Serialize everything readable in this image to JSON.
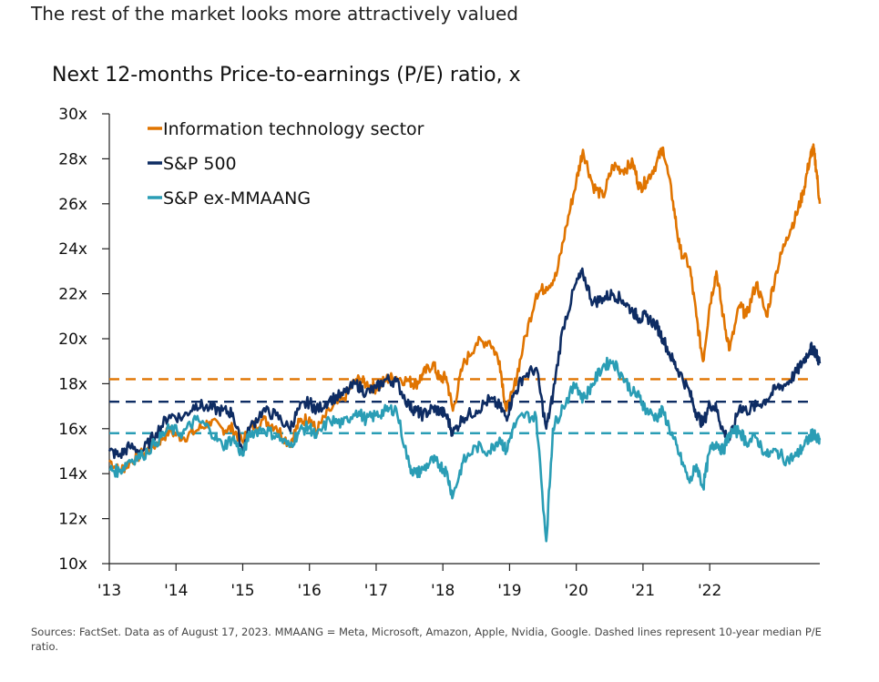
{
  "headline": "The rest of the market looks more attractively valued",
  "footnote": "Sources: FactSet. Data as of August 17, 2023. MMAANG = Meta, Microsoft, Amazon, Apple, Nvidia, Google. Dashed lines represent 10-year median P/E ratio.",
  "colors": {
    "it": "#E07400",
    "sp500": "#0E2C63",
    "exmmaang": "#2A9DB5"
  },
  "chart_data": {
    "type": "line",
    "title": "Next 12-months Price-to-earnings (P/E) ratio, x",
    "x_ticks": [
      "'13",
      "'14",
      "'15",
      "'16",
      "'17",
      "'18",
      "'19",
      "'20",
      "'21",
      "'22"
    ],
    "xlim": [
      2013.0,
      2023.65
    ],
    "ylim": [
      10,
      30
    ],
    "y_ticks": [
      "10x",
      "12x",
      "14x",
      "16x",
      "18x",
      "20x",
      "22x",
      "24x",
      "26x",
      "28x",
      "30x"
    ],
    "y_tick_values": [
      10,
      12,
      14,
      16,
      18,
      20,
      22,
      24,
      26,
      28,
      30
    ],
    "legend_position": "top-left",
    "series": [
      {
        "name": "Information technology sector",
        "key": "it",
        "median": 18.2,
        "points": [
          [
            2013.0,
            14.6
          ],
          [
            2013.15,
            14.1
          ],
          [
            2013.3,
            14.5
          ],
          [
            2013.5,
            14.9
          ],
          [
            2013.7,
            15.3
          ],
          [
            2013.9,
            15.9
          ],
          [
            2014.1,
            15.6
          ],
          [
            2014.3,
            15.9
          ],
          [
            2014.5,
            16.3
          ],
          [
            2014.7,
            16.0
          ],
          [
            2014.85,
            16.0
          ],
          [
            2015.0,
            15.4
          ],
          [
            2015.1,
            16.0
          ],
          [
            2015.3,
            16.4
          ],
          [
            2015.5,
            16.1
          ],
          [
            2015.7,
            15.3
          ],
          [
            2015.85,
            16.3
          ],
          [
            2016.0,
            16.5
          ],
          [
            2016.1,
            15.9
          ],
          [
            2016.3,
            16.8
          ],
          [
            2016.5,
            17.3
          ],
          [
            2016.7,
            18.2
          ],
          [
            2016.85,
            18.0
          ],
          [
            2017.0,
            17.8
          ],
          [
            2017.15,
            18.2
          ],
          [
            2017.3,
            18.3
          ],
          [
            2017.5,
            18.1
          ],
          [
            2017.6,
            18.0
          ],
          [
            2017.7,
            18.4
          ],
          [
            2017.85,
            18.9
          ],
          [
            2017.95,
            18.2
          ],
          [
            2018.05,
            18.3
          ],
          [
            2018.15,
            16.8
          ],
          [
            2018.3,
            18.8
          ],
          [
            2018.5,
            19.8
          ],
          [
            2018.7,
            19.9
          ],
          [
            2018.85,
            19.0
          ],
          [
            2018.95,
            16.8
          ],
          [
            2019.05,
            17.6
          ],
          [
            2019.2,
            19.6
          ],
          [
            2019.4,
            22.0
          ],
          [
            2019.55,
            22.3
          ],
          [
            2019.7,
            22.8
          ],
          [
            2019.85,
            25.0
          ],
          [
            2020.0,
            27.0
          ],
          [
            2020.1,
            28.4
          ],
          [
            2020.25,
            26.8
          ],
          [
            2020.4,
            26.3
          ],
          [
            2020.55,
            27.7
          ],
          [
            2020.7,
            27.5
          ],
          [
            2020.85,
            27.8
          ],
          [
            2020.95,
            26.7
          ],
          [
            2021.05,
            27.0
          ],
          [
            2021.2,
            27.8
          ],
          [
            2021.3,
            28.5
          ],
          [
            2021.45,
            26.1
          ],
          [
            2021.55,
            24.0
          ],
          [
            2021.7,
            23.2
          ],
          [
            2021.8,
            21.0
          ],
          [
            2021.9,
            19.0
          ],
          [
            2022.0,
            21.5
          ],
          [
            2022.1,
            23.0
          ],
          [
            2022.2,
            21.0
          ],
          [
            2022.3,
            19.5
          ],
          [
            2022.45,
            21.5
          ],
          [
            2022.55,
            21.0
          ],
          [
            2022.7,
            22.5
          ],
          [
            2022.85,
            21.0
          ],
          [
            2023.0,
            23.0
          ],
          [
            2023.15,
            24.5
          ],
          [
            2023.3,
            25.5
          ],
          [
            2023.4,
            26.5
          ],
          [
            2023.5,
            28.0
          ],
          [
            2023.55,
            28.5
          ],
          [
            2023.6,
            27.5
          ],
          [
            2023.65,
            26.0
          ]
        ]
      },
      {
        "name": "S&P 500",
        "key": "sp500",
        "median": 17.2,
        "points": [
          [
            2013.0,
            15.0
          ],
          [
            2013.15,
            14.8
          ],
          [
            2013.3,
            15.2
          ],
          [
            2013.5,
            15.0
          ],
          [
            2013.7,
            15.8
          ],
          [
            2013.9,
            16.6
          ],
          [
            2014.1,
            16.5
          ],
          [
            2014.3,
            17.1
          ],
          [
            2014.5,
            16.9
          ],
          [
            2014.7,
            16.8
          ],
          [
            2014.85,
            16.7
          ],
          [
            2015.0,
            15.0
          ],
          [
            2015.1,
            16.0
          ],
          [
            2015.3,
            16.8
          ],
          [
            2015.5,
            16.6
          ],
          [
            2015.7,
            16.0
          ],
          [
            2015.85,
            16.9
          ],
          [
            2016.0,
            17.2
          ],
          [
            2016.1,
            16.8
          ],
          [
            2016.3,
            17.3
          ],
          [
            2016.5,
            17.5
          ],
          [
            2016.7,
            18.0
          ],
          [
            2016.85,
            17.6
          ],
          [
            2017.0,
            17.8
          ],
          [
            2017.15,
            18.2
          ],
          [
            2017.3,
            18.1
          ],
          [
            2017.5,
            17.0
          ],
          [
            2017.6,
            16.8
          ],
          [
            2017.7,
            16.6
          ],
          [
            2017.85,
            16.9
          ],
          [
            2017.95,
            16.8
          ],
          [
            2018.05,
            16.6
          ],
          [
            2018.15,
            15.8
          ],
          [
            2018.3,
            16.5
          ],
          [
            2018.5,
            16.8
          ],
          [
            2018.7,
            17.3
          ],
          [
            2018.85,
            17.0
          ],
          [
            2018.95,
            16.5
          ],
          [
            2019.05,
            17.4
          ],
          [
            2019.2,
            18.3
          ],
          [
            2019.4,
            18.7
          ],
          [
            2019.55,
            16.0
          ],
          [
            2019.65,
            17.5
          ],
          [
            2019.8,
            20.5
          ],
          [
            2020.0,
            22.5
          ],
          [
            2020.1,
            22.9
          ],
          [
            2020.25,
            21.6
          ],
          [
            2020.4,
            21.8
          ],
          [
            2020.55,
            22.0
          ],
          [
            2020.7,
            21.7
          ],
          [
            2020.85,
            21.2
          ],
          [
            2020.95,
            20.9
          ],
          [
            2021.05,
            21.0
          ],
          [
            2021.2,
            20.6
          ],
          [
            2021.3,
            20.0
          ],
          [
            2021.45,
            19.0
          ],
          [
            2021.55,
            18.5
          ],
          [
            2021.7,
            17.6
          ],
          [
            2021.8,
            16.7
          ],
          [
            2021.9,
            16.2
          ],
          [
            2022.0,
            17.1
          ],
          [
            2022.1,
            16.9
          ],
          [
            2022.2,
            15.9
          ],
          [
            2022.3,
            15.5
          ],
          [
            2022.45,
            17.0
          ],
          [
            2022.55,
            16.8
          ],
          [
            2022.7,
            17.0
          ],
          [
            2022.85,
            17.3
          ],
          [
            2023.0,
            17.8
          ],
          [
            2023.15,
            18.0
          ],
          [
            2023.3,
            18.5
          ],
          [
            2023.4,
            19.0
          ],
          [
            2023.5,
            19.5
          ],
          [
            2023.55,
            19.6
          ],
          [
            2023.6,
            19.3
          ],
          [
            2023.65,
            18.9
          ]
        ]
      },
      {
        "name": "S&P ex-MMAANG",
        "key": "exmmaang",
        "median": 15.8,
        "points": [
          [
            2013.0,
            14.2
          ],
          [
            2013.15,
            14.1
          ],
          [
            2013.3,
            14.6
          ],
          [
            2013.5,
            14.8
          ],
          [
            2013.7,
            15.4
          ],
          [
            2013.9,
            16.0
          ],
          [
            2014.1,
            15.8
          ],
          [
            2014.3,
            16.4
          ],
          [
            2014.5,
            16.0
          ],
          [
            2014.7,
            15.2
          ],
          [
            2014.85,
            15.6
          ],
          [
            2015.0,
            14.8
          ],
          [
            2015.1,
            15.8
          ],
          [
            2015.3,
            16.0
          ],
          [
            2015.5,
            15.7
          ],
          [
            2015.7,
            15.2
          ],
          [
            2015.85,
            15.9
          ],
          [
            2016.0,
            16.1
          ],
          [
            2016.1,
            15.6
          ],
          [
            2016.3,
            16.4
          ],
          [
            2016.5,
            16.2
          ],
          [
            2016.7,
            16.8
          ],
          [
            2016.85,
            16.4
          ],
          [
            2017.0,
            16.6
          ],
          [
            2017.15,
            16.8
          ],
          [
            2017.3,
            16.9
          ],
          [
            2017.5,
            14.3
          ],
          [
            2017.6,
            14.0
          ],
          [
            2017.7,
            14.2
          ],
          [
            2017.85,
            14.6
          ],
          [
            2017.95,
            14.4
          ],
          [
            2018.05,
            14.1
          ],
          [
            2018.15,
            13.0
          ],
          [
            2018.3,
            14.5
          ],
          [
            2018.5,
            15.2
          ],
          [
            2018.7,
            15.0
          ],
          [
            2018.85,
            15.6
          ],
          [
            2018.95,
            15.0
          ],
          [
            2019.05,
            16.0
          ],
          [
            2019.2,
            16.6
          ],
          [
            2019.4,
            16.5
          ],
          [
            2019.55,
            11.0
          ],
          [
            2019.65,
            16.0
          ],
          [
            2019.8,
            17.0
          ],
          [
            2020.0,
            18.0
          ],
          [
            2020.1,
            17.3
          ],
          [
            2020.25,
            18.0
          ],
          [
            2020.4,
            18.8
          ],
          [
            2020.55,
            19.0
          ],
          [
            2020.7,
            18.3
          ],
          [
            2020.85,
            17.6
          ],
          [
            2020.95,
            17.4
          ],
          [
            2021.05,
            16.8
          ],
          [
            2021.2,
            16.5
          ],
          [
            2021.3,
            16.8
          ],
          [
            2021.45,
            15.6
          ],
          [
            2021.55,
            14.8
          ],
          [
            2021.7,
            13.6
          ],
          [
            2021.8,
            14.4
          ],
          [
            2021.9,
            13.4
          ],
          [
            2022.0,
            15.0
          ],
          [
            2022.1,
            15.4
          ],
          [
            2022.2,
            15.0
          ],
          [
            2022.3,
            15.8
          ],
          [
            2022.45,
            15.9
          ],
          [
            2022.55,
            15.4
          ],
          [
            2022.7,
            15.6
          ],
          [
            2022.85,
            14.8
          ],
          [
            2023.0,
            15.0
          ],
          [
            2023.15,
            14.6
          ],
          [
            2023.3,
            14.8
          ],
          [
            2023.4,
            15.2
          ],
          [
            2023.5,
            15.6
          ],
          [
            2023.55,
            15.8
          ],
          [
            2023.6,
            15.5
          ],
          [
            2023.65,
            15.5
          ]
        ]
      }
    ]
  }
}
